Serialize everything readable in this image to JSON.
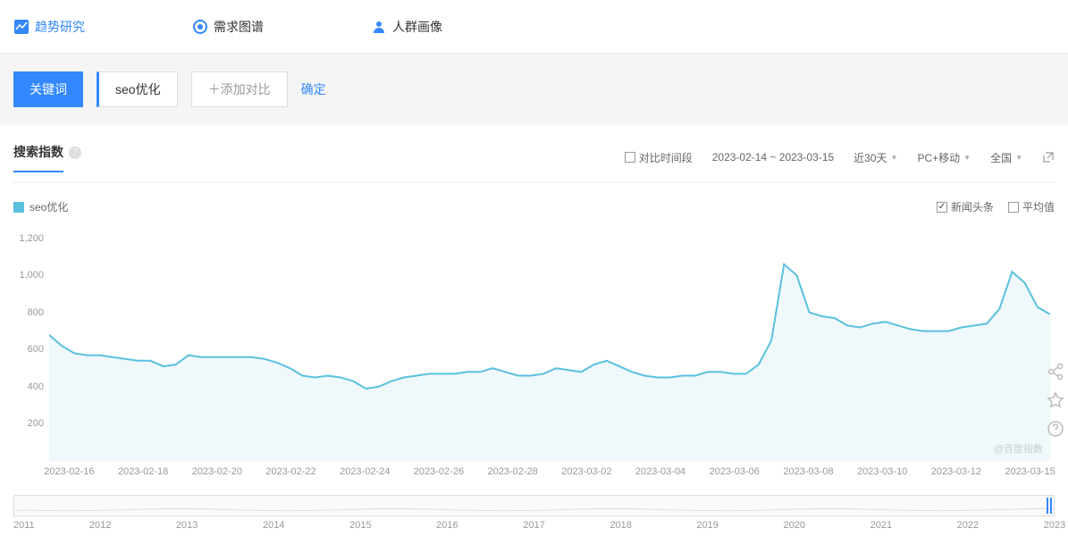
{
  "nav": {
    "trend": "趋势研究",
    "demand": "需求图谱",
    "crowd": "人群画像"
  },
  "kw": {
    "btn": "关键词",
    "tag": "seo优化",
    "add": "＋添加对比",
    "confirm": "确定"
  },
  "panel": {
    "title": "搜索指数",
    "compare_period": "对比时间段",
    "date_range": "2023-02-14 ~ 2023-03-15",
    "recent": "近30天",
    "device": "PC+移动",
    "region": "全国"
  },
  "legend": {
    "series": "seo优化",
    "news": "新闻头条",
    "avg": "平均值",
    "news_checked": true,
    "avg_checked": false
  },
  "chart": {
    "type": "area-line",
    "line_color": "#5bc0de",
    "fill_color": "#e8f6fb",
    "fill_opacity": 0.7,
    "line_width": 2,
    "background_color": "#ffffff",
    "grid_color": "#f0f0f0",
    "axis_text_color": "#999999",
    "axis_fontsize": 11,
    "ylim": [
      0,
      1300
    ],
    "yticks": [
      200,
      400,
      600,
      800,
      1000,
      1200
    ],
    "x_labels": [
      "2023-02-16",
      "2023-02-18",
      "2023-02-20",
      "2023-02-22",
      "2023-02-24",
      "2023-02-26",
      "2023-02-28",
      "2023-03-02",
      "2023-03-04",
      "2023-03-06",
      "2023-03-08",
      "2023-03-10",
      "2023-03-12",
      "2023-03-15"
    ],
    "values": [
      680,
      620,
      580,
      570,
      570,
      560,
      550,
      540,
      540,
      510,
      520,
      570,
      560,
      560,
      560,
      560,
      560,
      550,
      530,
      500,
      460,
      450,
      460,
      450,
      430,
      390,
      400,
      430,
      450,
      460,
      470,
      470,
      470,
      480,
      480,
      500,
      480,
      460,
      460,
      470,
      500,
      490,
      480,
      520,
      540,
      510,
      480,
      460,
      450,
      450,
      460,
      460,
      480,
      480,
      470,
      470,
      520,
      650,
      1060,
      1000,
      800,
      780,
      770,
      730,
      720,
      740,
      750,
      730,
      710,
      700,
      700,
      700,
      720,
      730,
      740,
      820,
      1020,
      960,
      830,
      790
    ],
    "watermark": "@百度指数"
  },
  "brush": {
    "years": [
      "2011",
      "2012",
      "2013",
      "2014",
      "2015",
      "2016",
      "2017",
      "2018",
      "2019",
      "2020",
      "2021",
      "2022",
      "2023"
    ]
  }
}
